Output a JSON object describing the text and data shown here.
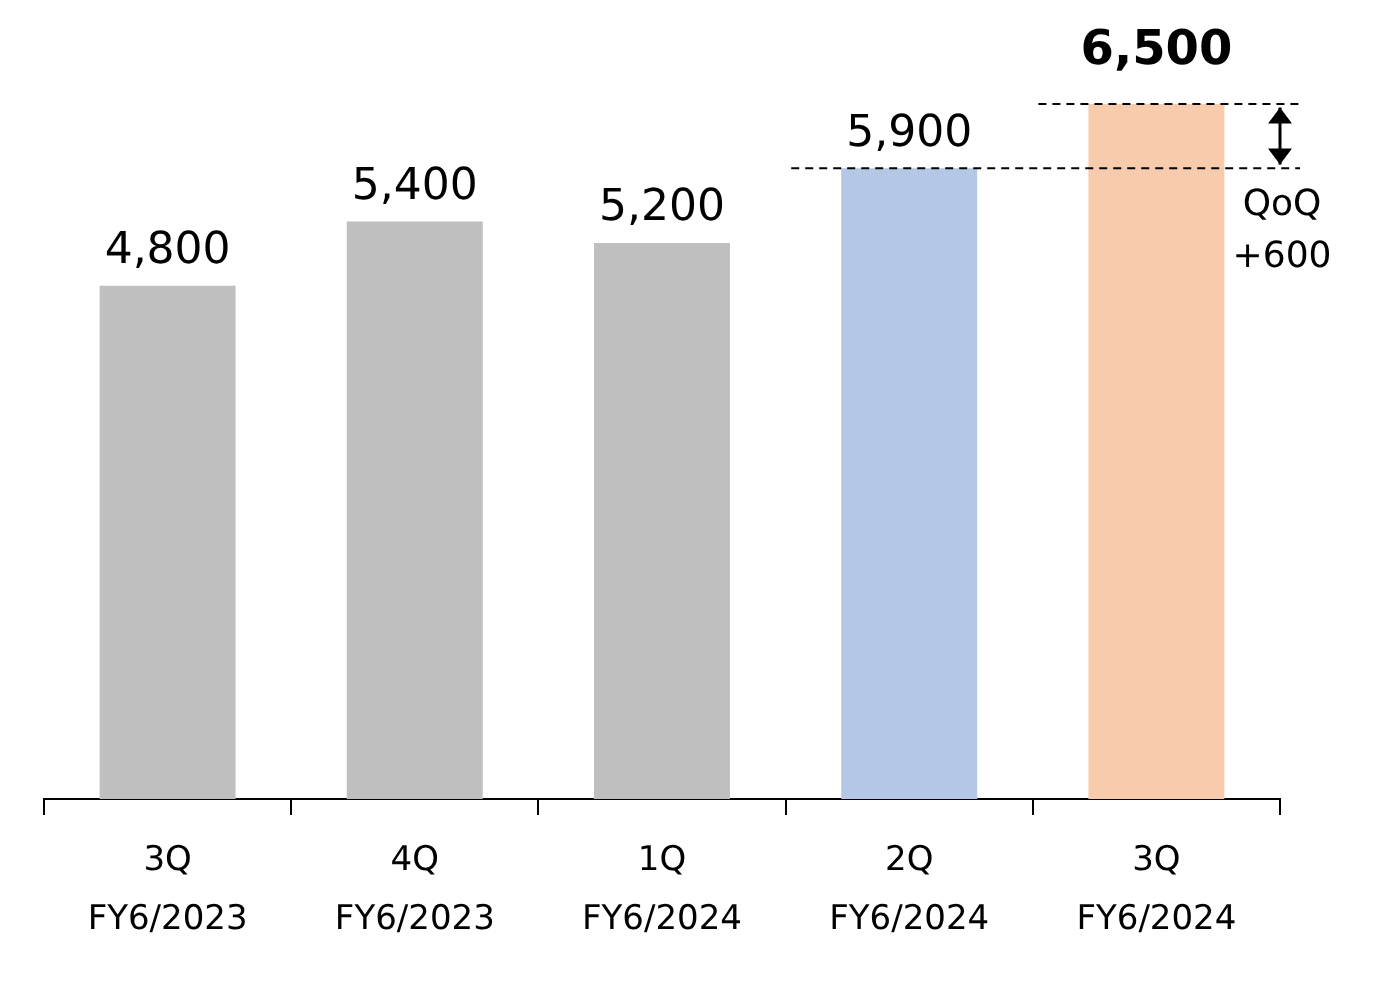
{
  "chart_data": {
    "type": "bar",
    "categories": [
      "3Q\nFY6/2023",
      "4Q\nFY6/2023",
      "1Q\nFY6/2024",
      "2Q\nFY6/2024",
      "3Q\nFY6/2024"
    ],
    "values": [
      4800,
      5400,
      5200,
      5900,
      6500
    ],
    "colors": [
      "#bfbfbf",
      "#bfbfbf",
      "#bfbfbf",
      "#b4c7e7",
      "#f8cbad"
    ],
    "value_labels": [
      "4,800",
      "5,400",
      "5,200",
      "5,900",
      "6,500"
    ],
    "ref_lines": [
      {
        "axis": "y",
        "value": 5900,
        "color": "#000000",
        "line_style": "dashed"
      },
      {
        "axis": "y",
        "value": 6500,
        "color": "#000000",
        "line_style": "dashed"
      }
    ],
    "annotations": [
      "QoQ\n+600"
    ],
    "grid": false,
    "legend": false
  }
}
